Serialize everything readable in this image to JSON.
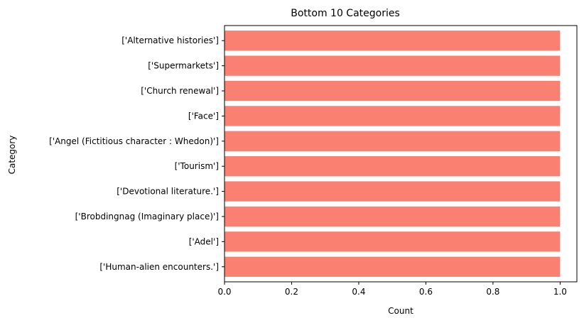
{
  "chart_data": {
    "type": "bar",
    "orientation": "horizontal",
    "title": "Bottom 10 Categories",
    "xlabel": "Count",
    "ylabel": "Category",
    "categories": [
      "['Alternative histories']",
      "['Supermarkets']",
      "['Church renewal']",
      "['Face']",
      "['Angel (Fictitious character : Whedon)']",
      "['Tourism']",
      "['Devotional literature.']",
      "['Brobdingnag (Imaginary place)']",
      "['Adel']",
      "['Human-alien encounters.']"
    ],
    "values": [
      1,
      1,
      1,
      1,
      1,
      1,
      1,
      1,
      1,
      1
    ],
    "xlim": [
      0,
      1.05
    ],
    "xticks": [
      0.0,
      0.2,
      0.4,
      0.6,
      0.8,
      1.0
    ],
    "xtick_labels": [
      "0.0",
      "0.2",
      "0.4",
      "0.6",
      "0.8",
      "1.0"
    ],
    "bar_color": "#fa8072",
    "grid": false,
    "legend": "none"
  }
}
